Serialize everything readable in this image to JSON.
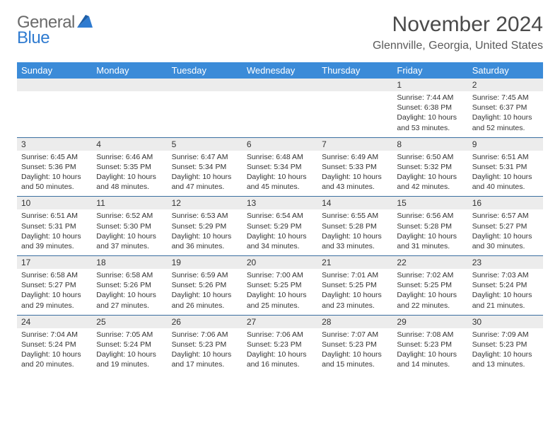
{
  "brand": {
    "word1": "General",
    "word2": "Blue"
  },
  "title": "November 2024",
  "location": "Glennville, Georgia, United States",
  "colors": {
    "header_bg": "#3b8bd8",
    "header_text": "#ffffff",
    "daynum_bg": "#ececec",
    "week_border": "#3b6fa0",
    "logo_gray": "#6a6a6a",
    "logo_blue": "#2f7bd0",
    "text": "#333333"
  },
  "weekdays": [
    "Sunday",
    "Monday",
    "Tuesday",
    "Wednesday",
    "Thursday",
    "Friday",
    "Saturday"
  ],
  "weeks": [
    [
      null,
      null,
      null,
      null,
      null,
      {
        "n": "1",
        "sr": "Sunrise: 7:44 AM",
        "ss": "Sunset: 6:38 PM",
        "d1": "Daylight: 10 hours",
        "d2": "and 53 minutes."
      },
      {
        "n": "2",
        "sr": "Sunrise: 7:45 AM",
        "ss": "Sunset: 6:37 PM",
        "d1": "Daylight: 10 hours",
        "d2": "and 52 minutes."
      }
    ],
    [
      {
        "n": "3",
        "sr": "Sunrise: 6:45 AM",
        "ss": "Sunset: 5:36 PM",
        "d1": "Daylight: 10 hours",
        "d2": "and 50 minutes."
      },
      {
        "n": "4",
        "sr": "Sunrise: 6:46 AM",
        "ss": "Sunset: 5:35 PM",
        "d1": "Daylight: 10 hours",
        "d2": "and 48 minutes."
      },
      {
        "n": "5",
        "sr": "Sunrise: 6:47 AM",
        "ss": "Sunset: 5:34 PM",
        "d1": "Daylight: 10 hours",
        "d2": "and 47 minutes."
      },
      {
        "n": "6",
        "sr": "Sunrise: 6:48 AM",
        "ss": "Sunset: 5:34 PM",
        "d1": "Daylight: 10 hours",
        "d2": "and 45 minutes."
      },
      {
        "n": "7",
        "sr": "Sunrise: 6:49 AM",
        "ss": "Sunset: 5:33 PM",
        "d1": "Daylight: 10 hours",
        "d2": "and 43 minutes."
      },
      {
        "n": "8",
        "sr": "Sunrise: 6:50 AM",
        "ss": "Sunset: 5:32 PM",
        "d1": "Daylight: 10 hours",
        "d2": "and 42 minutes."
      },
      {
        "n": "9",
        "sr": "Sunrise: 6:51 AM",
        "ss": "Sunset: 5:31 PM",
        "d1": "Daylight: 10 hours",
        "d2": "and 40 minutes."
      }
    ],
    [
      {
        "n": "10",
        "sr": "Sunrise: 6:51 AM",
        "ss": "Sunset: 5:31 PM",
        "d1": "Daylight: 10 hours",
        "d2": "and 39 minutes."
      },
      {
        "n": "11",
        "sr": "Sunrise: 6:52 AM",
        "ss": "Sunset: 5:30 PM",
        "d1": "Daylight: 10 hours",
        "d2": "and 37 minutes."
      },
      {
        "n": "12",
        "sr": "Sunrise: 6:53 AM",
        "ss": "Sunset: 5:29 PM",
        "d1": "Daylight: 10 hours",
        "d2": "and 36 minutes."
      },
      {
        "n": "13",
        "sr": "Sunrise: 6:54 AM",
        "ss": "Sunset: 5:29 PM",
        "d1": "Daylight: 10 hours",
        "d2": "and 34 minutes."
      },
      {
        "n": "14",
        "sr": "Sunrise: 6:55 AM",
        "ss": "Sunset: 5:28 PM",
        "d1": "Daylight: 10 hours",
        "d2": "and 33 minutes."
      },
      {
        "n": "15",
        "sr": "Sunrise: 6:56 AM",
        "ss": "Sunset: 5:28 PM",
        "d1": "Daylight: 10 hours",
        "d2": "and 31 minutes."
      },
      {
        "n": "16",
        "sr": "Sunrise: 6:57 AM",
        "ss": "Sunset: 5:27 PM",
        "d1": "Daylight: 10 hours",
        "d2": "and 30 minutes."
      }
    ],
    [
      {
        "n": "17",
        "sr": "Sunrise: 6:58 AM",
        "ss": "Sunset: 5:27 PM",
        "d1": "Daylight: 10 hours",
        "d2": "and 29 minutes."
      },
      {
        "n": "18",
        "sr": "Sunrise: 6:58 AM",
        "ss": "Sunset: 5:26 PM",
        "d1": "Daylight: 10 hours",
        "d2": "and 27 minutes."
      },
      {
        "n": "19",
        "sr": "Sunrise: 6:59 AM",
        "ss": "Sunset: 5:26 PM",
        "d1": "Daylight: 10 hours",
        "d2": "and 26 minutes."
      },
      {
        "n": "20",
        "sr": "Sunrise: 7:00 AM",
        "ss": "Sunset: 5:25 PM",
        "d1": "Daylight: 10 hours",
        "d2": "and 25 minutes."
      },
      {
        "n": "21",
        "sr": "Sunrise: 7:01 AM",
        "ss": "Sunset: 5:25 PM",
        "d1": "Daylight: 10 hours",
        "d2": "and 23 minutes."
      },
      {
        "n": "22",
        "sr": "Sunrise: 7:02 AM",
        "ss": "Sunset: 5:25 PM",
        "d1": "Daylight: 10 hours",
        "d2": "and 22 minutes."
      },
      {
        "n": "23",
        "sr": "Sunrise: 7:03 AM",
        "ss": "Sunset: 5:24 PM",
        "d1": "Daylight: 10 hours",
        "d2": "and 21 minutes."
      }
    ],
    [
      {
        "n": "24",
        "sr": "Sunrise: 7:04 AM",
        "ss": "Sunset: 5:24 PM",
        "d1": "Daylight: 10 hours",
        "d2": "and 20 minutes."
      },
      {
        "n": "25",
        "sr": "Sunrise: 7:05 AM",
        "ss": "Sunset: 5:24 PM",
        "d1": "Daylight: 10 hours",
        "d2": "and 19 minutes."
      },
      {
        "n": "26",
        "sr": "Sunrise: 7:06 AM",
        "ss": "Sunset: 5:23 PM",
        "d1": "Daylight: 10 hours",
        "d2": "and 17 minutes."
      },
      {
        "n": "27",
        "sr": "Sunrise: 7:06 AM",
        "ss": "Sunset: 5:23 PM",
        "d1": "Daylight: 10 hours",
        "d2": "and 16 minutes."
      },
      {
        "n": "28",
        "sr": "Sunrise: 7:07 AM",
        "ss": "Sunset: 5:23 PM",
        "d1": "Daylight: 10 hours",
        "d2": "and 15 minutes."
      },
      {
        "n": "29",
        "sr": "Sunrise: 7:08 AM",
        "ss": "Sunset: 5:23 PM",
        "d1": "Daylight: 10 hours",
        "d2": "and 14 minutes."
      },
      {
        "n": "30",
        "sr": "Sunrise: 7:09 AM",
        "ss": "Sunset: 5:23 PM",
        "d1": "Daylight: 10 hours",
        "d2": "and 13 minutes."
      }
    ]
  ]
}
